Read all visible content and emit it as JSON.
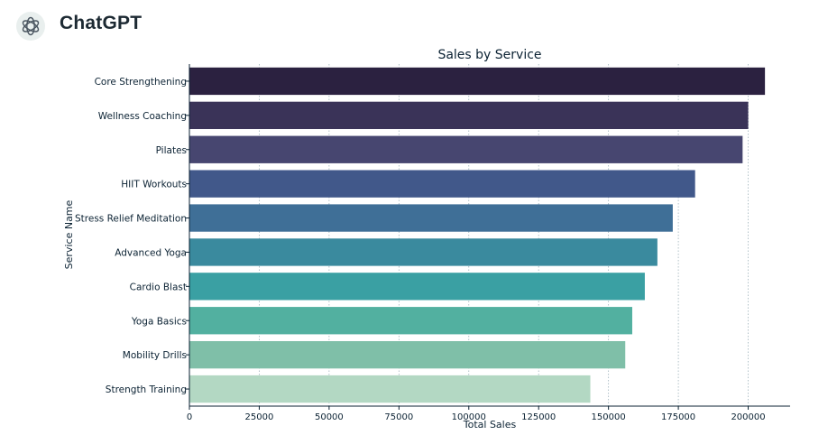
{
  "app": {
    "title": "ChatGPT",
    "logo_icon": "openai-logo-icon"
  },
  "chart_data": {
    "type": "bar",
    "orientation": "horizontal",
    "title": "Sales by Service",
    "xlabel": "Total Sales",
    "ylabel": "Service Name",
    "categories": [
      "Core Strengthening",
      "Wellness Coaching",
      "Pilates",
      "HIIT Workouts",
      "Stress Relief Meditation",
      "Advanced Yoga",
      "Cardio Blast",
      "Yoga Basics",
      "Mobility Drills",
      "Strength Training"
    ],
    "values": [
      206000,
      200000,
      198000,
      181000,
      173000,
      167500,
      163000,
      158500,
      156000,
      143500
    ],
    "colors": [
      "#2b2140",
      "#3a3358",
      "#474670",
      "#41588a",
      "#3f6f97",
      "#3a8a9e",
      "#3aa0a3",
      "#52b0a0",
      "#7fbfa8",
      "#b3d8c3"
    ],
    "xlim": [
      0,
      215000
    ],
    "xticks": [
      0,
      25000,
      50000,
      75000,
      100000,
      125000,
      150000,
      175000,
      200000
    ],
    "xtick_labels": [
      "0",
      "25000",
      "50000",
      "75000",
      "100000",
      "125000",
      "150000",
      "175000",
      "200000"
    ],
    "grid": "x-dotted",
    "legend": "none"
  }
}
